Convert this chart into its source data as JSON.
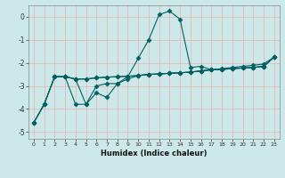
{
  "xlabel": "Humidex (Indice chaleur)",
  "background_color": "#cce8e8",
  "grid_color": "#e8b0b0",
  "line_color": "#006060",
  "xlim": [
    -0.5,
    23.5
  ],
  "ylim": [
    -5.3,
    0.5
  ],
  "yticks": [
    0,
    -1,
    -2,
    -3,
    -4,
    -5
  ],
  "xticks": [
    0,
    1,
    2,
    3,
    4,
    5,
    6,
    7,
    8,
    9,
    10,
    11,
    12,
    13,
    14,
    15,
    16,
    17,
    18,
    19,
    20,
    21,
    22,
    23
  ],
  "line_peak_x": [
    0,
    1,
    2,
    3,
    4,
    5,
    6,
    7,
    8,
    9,
    10,
    11,
    12,
    13,
    14,
    15,
    16,
    17,
    18,
    19,
    20,
    21,
    22,
    23
  ],
  "line_peak_y": [
    -4.6,
    -3.8,
    -2.6,
    -2.6,
    -3.8,
    -3.8,
    -3.0,
    -2.9,
    -2.9,
    -2.6,
    -1.8,
    -1.0,
    0.1,
    0.25,
    -0.1,
    -2.2,
    -2.15,
    -2.3,
    -2.25,
    -2.2,
    -2.15,
    -2.1,
    -2.05,
    -1.75
  ],
  "line_flat1_x": [
    0,
    1,
    2,
    3,
    4,
    5,
    6,
    7,
    8,
    9,
    10,
    11,
    12,
    13,
    14,
    15,
    16,
    17,
    18,
    19,
    20,
    21,
    22,
    23
  ],
  "line_flat1_y": [
    -4.6,
    -3.8,
    -2.6,
    -2.6,
    -2.7,
    -2.7,
    -2.65,
    -2.62,
    -2.6,
    -2.58,
    -2.55,
    -2.5,
    -2.48,
    -2.45,
    -2.43,
    -2.4,
    -2.35,
    -2.3,
    -2.28,
    -2.25,
    -2.22,
    -2.2,
    -2.15,
    -1.75
  ],
  "line_flat2_x": [
    2,
    3,
    4,
    5,
    6,
    7,
    8,
    9,
    10,
    11,
    12,
    13,
    14,
    15,
    16,
    17,
    18,
    19,
    20,
    21,
    22,
    23
  ],
  "line_flat2_y": [
    -2.6,
    -2.6,
    -2.7,
    -2.7,
    -2.65,
    -2.62,
    -2.6,
    -2.58,
    -2.55,
    -2.5,
    -2.48,
    -2.45,
    -2.43,
    -2.4,
    -2.35,
    -2.3,
    -2.28,
    -2.25,
    -2.22,
    -2.2,
    -2.15,
    -1.75
  ],
  "line_zigzag_x": [
    0,
    1,
    2,
    3,
    4,
    5,
    6,
    7,
    8,
    9,
    10,
    11,
    12,
    13,
    14,
    15,
    16,
    17,
    18,
    19,
    20,
    21,
    22,
    23
  ],
  "line_zigzag_y": [
    -4.6,
    -3.8,
    -2.6,
    -2.6,
    -2.7,
    -3.8,
    -3.3,
    -3.5,
    -2.9,
    -2.7,
    -2.55,
    -2.5,
    -2.48,
    -2.45,
    -2.43,
    -2.4,
    -2.35,
    -2.3,
    -2.28,
    -2.25,
    -2.22,
    -2.2,
    -2.15,
    -1.75
  ]
}
